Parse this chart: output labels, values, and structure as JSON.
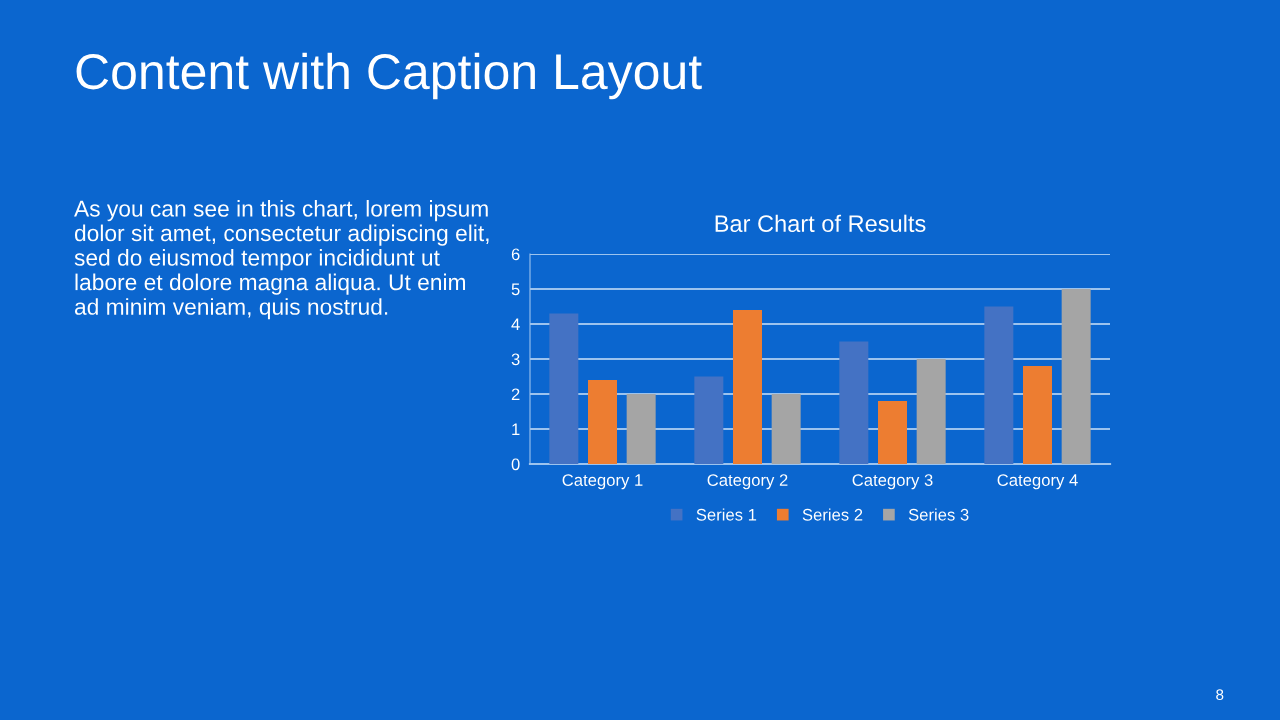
{
  "chart_data": {
    "type": "bar",
    "title": "Bar Chart of Results",
    "annotations": [
      "Content with Caption Layout",
      "As you can see in this chart, lorem ipsum dolor sit amet, consectetur adipiscing elit, sed do eiusmod tempor incididunt ut labore et dolore magna aliqua. Ut enim ad minim veniam, quis nostrud.",
      "8"
    ],
    "categories": [
      "Category 1",
      "Category 2",
      "Category 3",
      "Category 4"
    ],
    "series": [
      {
        "name": "Series 1",
        "color": "#4472c4",
        "values": [
          4.3,
          2.5,
          3.5,
          4.5
        ]
      },
      {
        "name": "Series 2",
        "color": "#ed7d31",
        "values": [
          2.4,
          4.4,
          1.8,
          2.8
        ]
      },
      {
        "name": "Series 3",
        "color": "#a5a5a5",
        "values": [
          2,
          2,
          3,
          5
        ]
      }
    ],
    "ylim": [
      0,
      6
    ],
    "yticks": [
      0,
      1,
      2,
      3,
      4,
      5,
      6
    ],
    "grid": "y",
    "legend": "bottom"
  }
}
